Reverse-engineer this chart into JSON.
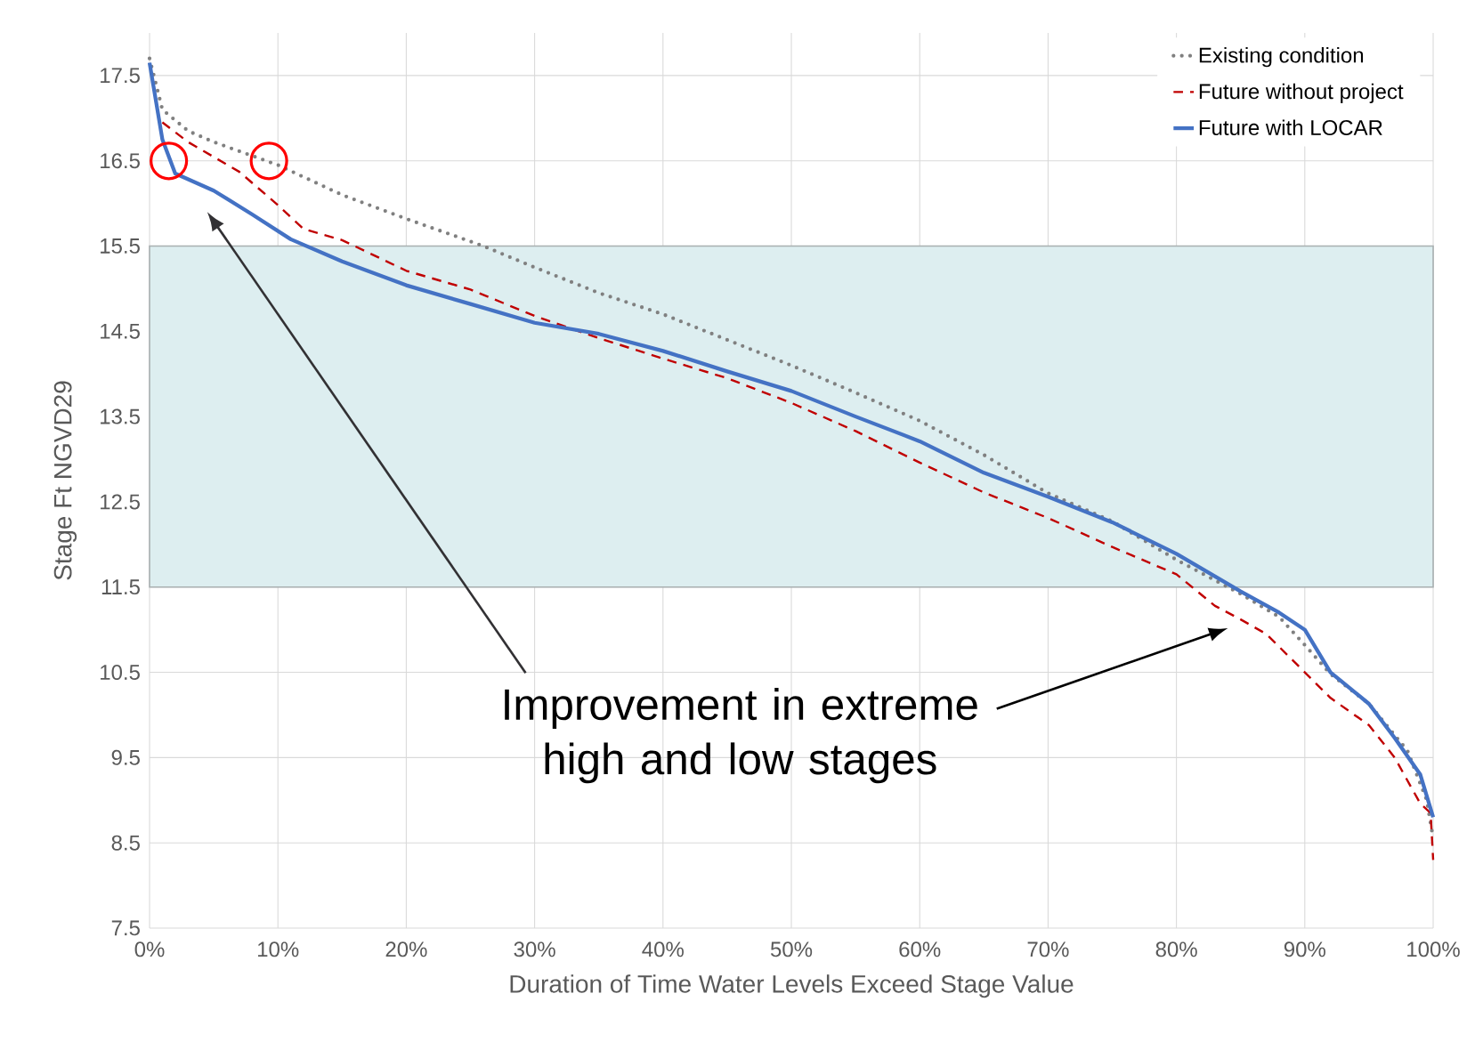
{
  "chart_data": {
    "type": "line",
    "xlabel": "Duration of Time Water Levels Exceed Stage Value",
    "ylabel": "Stage Ft NGVD29",
    "xlim": [
      0,
      100
    ],
    "ylim": [
      7.5,
      18
    ],
    "xticks": [
      {
        "value": 0,
        "label": "0%"
      },
      {
        "value": 10,
        "label": "10%"
      },
      {
        "value": 20,
        "label": "20%"
      },
      {
        "value": 30,
        "label": "30%"
      },
      {
        "value": 40,
        "label": "40%"
      },
      {
        "value": 50,
        "label": "50%"
      },
      {
        "value": 60,
        "label": "60%"
      },
      {
        "value": 70,
        "label": "70%"
      },
      {
        "value": 80,
        "label": "80%"
      },
      {
        "value": 90,
        "label": "90%"
      },
      {
        "value": 100,
        "label": "100%"
      }
    ],
    "yticks": [
      7.5,
      8.5,
      9.5,
      10.5,
      11.5,
      12.5,
      13.5,
      14.5,
      15.5,
      16.5,
      17.5
    ],
    "grid": true,
    "legend": "top right",
    "marker": "none",
    "bands": [
      {
        "axis": "y",
        "from": 11.5,
        "to": 15.5,
        "color": "#ddeef0"
      }
    ],
    "annotations": [
      "Improvement in extreme high and low stages"
    ],
    "series": [
      {
        "name": "Existing condition",
        "color": "#808080",
        "line_style": "dotted",
        "x": [
          0,
          1,
          3,
          5,
          10,
          15,
          20,
          26,
          30,
          35,
          40,
          45,
          50,
          55,
          60,
          65,
          70,
          75,
          80,
          85,
          88,
          90,
          92,
          95,
          98,
          99.5,
          100
        ],
        "values": [
          17.7,
          17.1,
          16.85,
          16.72,
          16.45,
          16.1,
          15.82,
          15.5,
          15.25,
          14.95,
          14.7,
          14.4,
          14.1,
          13.78,
          13.45,
          13.05,
          12.6,
          12.27,
          11.82,
          11.42,
          11.15,
          10.82,
          10.48,
          10.13,
          9.58,
          9.0,
          8.55
        ]
      },
      {
        "name": "Future without project",
        "color": "#c00000",
        "line_style": "dashed",
        "x": [
          1,
          3,
          7,
          10,
          12,
          15,
          20,
          25,
          30,
          35,
          40,
          45,
          50,
          55,
          60,
          65,
          70,
          75,
          80,
          83,
          85,
          87,
          90,
          92,
          95,
          97,
          99,
          99.8,
          100
        ],
        "values": [
          16.95,
          16.72,
          16.37,
          15.98,
          15.7,
          15.57,
          15.21,
          14.99,
          14.68,
          14.42,
          14.18,
          13.95,
          13.66,
          13.33,
          12.96,
          12.61,
          12.31,
          11.97,
          11.65,
          11.28,
          11.12,
          10.95,
          10.5,
          10.2,
          9.88,
          9.5,
          8.96,
          8.85,
          8.3
        ]
      },
      {
        "name": "Future with LOCAR",
        "color": "#4472c4",
        "line_style": "solid",
        "x": [
          0,
          1,
          2,
          5,
          8,
          11,
          15,
          20,
          25,
          30,
          35,
          40,
          45,
          50,
          55,
          60,
          65,
          70,
          75,
          80,
          85,
          88,
          90,
          92,
          95,
          97,
          99,
          100
        ],
        "values": [
          17.65,
          16.75,
          16.35,
          16.15,
          15.87,
          15.58,
          15.32,
          15.04,
          14.82,
          14.6,
          14.47,
          14.27,
          14.03,
          13.8,
          13.5,
          13.21,
          12.84,
          12.56,
          12.26,
          11.89,
          11.45,
          11.2,
          11.0,
          10.5,
          10.13,
          9.73,
          9.3,
          8.8
        ]
      }
    ]
  }
}
